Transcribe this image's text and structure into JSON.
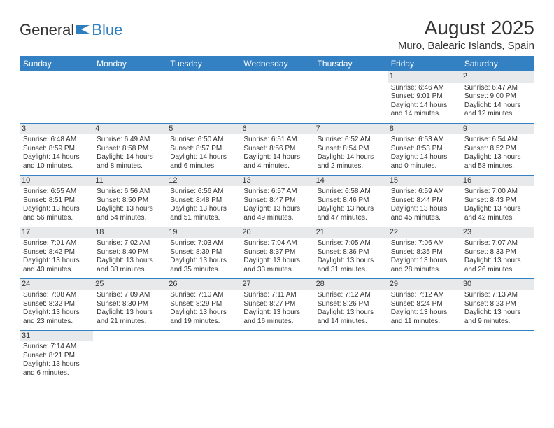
{
  "brand": {
    "general": "General",
    "blue": "Blue"
  },
  "title": "August 2025",
  "location": "Muro, Balearic Islands, Spain",
  "colors": {
    "header_bg": "#3380c2",
    "header_text": "#ffffff",
    "daynum_bg": "#e8e9ea",
    "border": "#3380c2",
    "text": "#333333",
    "logo_blue": "#2f7fbf"
  },
  "weekdays": [
    "Sunday",
    "Monday",
    "Tuesday",
    "Wednesday",
    "Thursday",
    "Friday",
    "Saturday"
  ],
  "weeks": [
    [
      {
        "day": "",
        "sunrise": "",
        "sunset": "",
        "daylight": ""
      },
      {
        "day": "",
        "sunrise": "",
        "sunset": "",
        "daylight": ""
      },
      {
        "day": "",
        "sunrise": "",
        "sunset": "",
        "daylight": ""
      },
      {
        "day": "",
        "sunrise": "",
        "sunset": "",
        "daylight": ""
      },
      {
        "day": "",
        "sunrise": "",
        "sunset": "",
        "daylight": ""
      },
      {
        "day": "1",
        "sunrise": "Sunrise: 6:46 AM",
        "sunset": "Sunset: 9:01 PM",
        "daylight": "Daylight: 14 hours and 14 minutes."
      },
      {
        "day": "2",
        "sunrise": "Sunrise: 6:47 AM",
        "sunset": "Sunset: 9:00 PM",
        "daylight": "Daylight: 14 hours and 12 minutes."
      }
    ],
    [
      {
        "day": "3",
        "sunrise": "Sunrise: 6:48 AM",
        "sunset": "Sunset: 8:59 PM",
        "daylight": "Daylight: 14 hours and 10 minutes."
      },
      {
        "day": "4",
        "sunrise": "Sunrise: 6:49 AM",
        "sunset": "Sunset: 8:58 PM",
        "daylight": "Daylight: 14 hours and 8 minutes."
      },
      {
        "day": "5",
        "sunrise": "Sunrise: 6:50 AM",
        "sunset": "Sunset: 8:57 PM",
        "daylight": "Daylight: 14 hours and 6 minutes."
      },
      {
        "day": "6",
        "sunrise": "Sunrise: 6:51 AM",
        "sunset": "Sunset: 8:56 PM",
        "daylight": "Daylight: 14 hours and 4 minutes."
      },
      {
        "day": "7",
        "sunrise": "Sunrise: 6:52 AM",
        "sunset": "Sunset: 8:54 PM",
        "daylight": "Daylight: 14 hours and 2 minutes."
      },
      {
        "day": "8",
        "sunrise": "Sunrise: 6:53 AM",
        "sunset": "Sunset: 8:53 PM",
        "daylight": "Daylight: 14 hours and 0 minutes."
      },
      {
        "day": "9",
        "sunrise": "Sunrise: 6:54 AM",
        "sunset": "Sunset: 8:52 PM",
        "daylight": "Daylight: 13 hours and 58 minutes."
      }
    ],
    [
      {
        "day": "10",
        "sunrise": "Sunrise: 6:55 AM",
        "sunset": "Sunset: 8:51 PM",
        "daylight": "Daylight: 13 hours and 56 minutes."
      },
      {
        "day": "11",
        "sunrise": "Sunrise: 6:56 AM",
        "sunset": "Sunset: 8:50 PM",
        "daylight": "Daylight: 13 hours and 54 minutes."
      },
      {
        "day": "12",
        "sunrise": "Sunrise: 6:56 AM",
        "sunset": "Sunset: 8:48 PM",
        "daylight": "Daylight: 13 hours and 51 minutes."
      },
      {
        "day": "13",
        "sunrise": "Sunrise: 6:57 AM",
        "sunset": "Sunset: 8:47 PM",
        "daylight": "Daylight: 13 hours and 49 minutes."
      },
      {
        "day": "14",
        "sunrise": "Sunrise: 6:58 AM",
        "sunset": "Sunset: 8:46 PM",
        "daylight": "Daylight: 13 hours and 47 minutes."
      },
      {
        "day": "15",
        "sunrise": "Sunrise: 6:59 AM",
        "sunset": "Sunset: 8:44 PM",
        "daylight": "Daylight: 13 hours and 45 minutes."
      },
      {
        "day": "16",
        "sunrise": "Sunrise: 7:00 AM",
        "sunset": "Sunset: 8:43 PM",
        "daylight": "Daylight: 13 hours and 42 minutes."
      }
    ],
    [
      {
        "day": "17",
        "sunrise": "Sunrise: 7:01 AM",
        "sunset": "Sunset: 8:42 PM",
        "daylight": "Daylight: 13 hours and 40 minutes."
      },
      {
        "day": "18",
        "sunrise": "Sunrise: 7:02 AM",
        "sunset": "Sunset: 8:40 PM",
        "daylight": "Daylight: 13 hours and 38 minutes."
      },
      {
        "day": "19",
        "sunrise": "Sunrise: 7:03 AM",
        "sunset": "Sunset: 8:39 PM",
        "daylight": "Daylight: 13 hours and 35 minutes."
      },
      {
        "day": "20",
        "sunrise": "Sunrise: 7:04 AM",
        "sunset": "Sunset: 8:37 PM",
        "daylight": "Daylight: 13 hours and 33 minutes."
      },
      {
        "day": "21",
        "sunrise": "Sunrise: 7:05 AM",
        "sunset": "Sunset: 8:36 PM",
        "daylight": "Daylight: 13 hours and 31 minutes."
      },
      {
        "day": "22",
        "sunrise": "Sunrise: 7:06 AM",
        "sunset": "Sunset: 8:35 PM",
        "daylight": "Daylight: 13 hours and 28 minutes."
      },
      {
        "day": "23",
        "sunrise": "Sunrise: 7:07 AM",
        "sunset": "Sunset: 8:33 PM",
        "daylight": "Daylight: 13 hours and 26 minutes."
      }
    ],
    [
      {
        "day": "24",
        "sunrise": "Sunrise: 7:08 AM",
        "sunset": "Sunset: 8:32 PM",
        "daylight": "Daylight: 13 hours and 23 minutes."
      },
      {
        "day": "25",
        "sunrise": "Sunrise: 7:09 AM",
        "sunset": "Sunset: 8:30 PM",
        "daylight": "Daylight: 13 hours and 21 minutes."
      },
      {
        "day": "26",
        "sunrise": "Sunrise: 7:10 AM",
        "sunset": "Sunset: 8:29 PM",
        "daylight": "Daylight: 13 hours and 19 minutes."
      },
      {
        "day": "27",
        "sunrise": "Sunrise: 7:11 AM",
        "sunset": "Sunset: 8:27 PM",
        "daylight": "Daylight: 13 hours and 16 minutes."
      },
      {
        "day": "28",
        "sunrise": "Sunrise: 7:12 AM",
        "sunset": "Sunset: 8:26 PM",
        "daylight": "Daylight: 13 hours and 14 minutes."
      },
      {
        "day": "29",
        "sunrise": "Sunrise: 7:12 AM",
        "sunset": "Sunset: 8:24 PM",
        "daylight": "Daylight: 13 hours and 11 minutes."
      },
      {
        "day": "30",
        "sunrise": "Sunrise: 7:13 AM",
        "sunset": "Sunset: 8:23 PM",
        "daylight": "Daylight: 13 hours and 9 minutes."
      }
    ],
    [
      {
        "day": "31",
        "sunrise": "Sunrise: 7:14 AM",
        "sunset": "Sunset: 8:21 PM",
        "daylight": "Daylight: 13 hours and 6 minutes."
      },
      {
        "day": "",
        "sunrise": "",
        "sunset": "",
        "daylight": ""
      },
      {
        "day": "",
        "sunrise": "",
        "sunset": "",
        "daylight": ""
      },
      {
        "day": "",
        "sunrise": "",
        "sunset": "",
        "daylight": ""
      },
      {
        "day": "",
        "sunrise": "",
        "sunset": "",
        "daylight": ""
      },
      {
        "day": "",
        "sunrise": "",
        "sunset": "",
        "daylight": ""
      },
      {
        "day": "",
        "sunrise": "",
        "sunset": "",
        "daylight": ""
      }
    ]
  ]
}
